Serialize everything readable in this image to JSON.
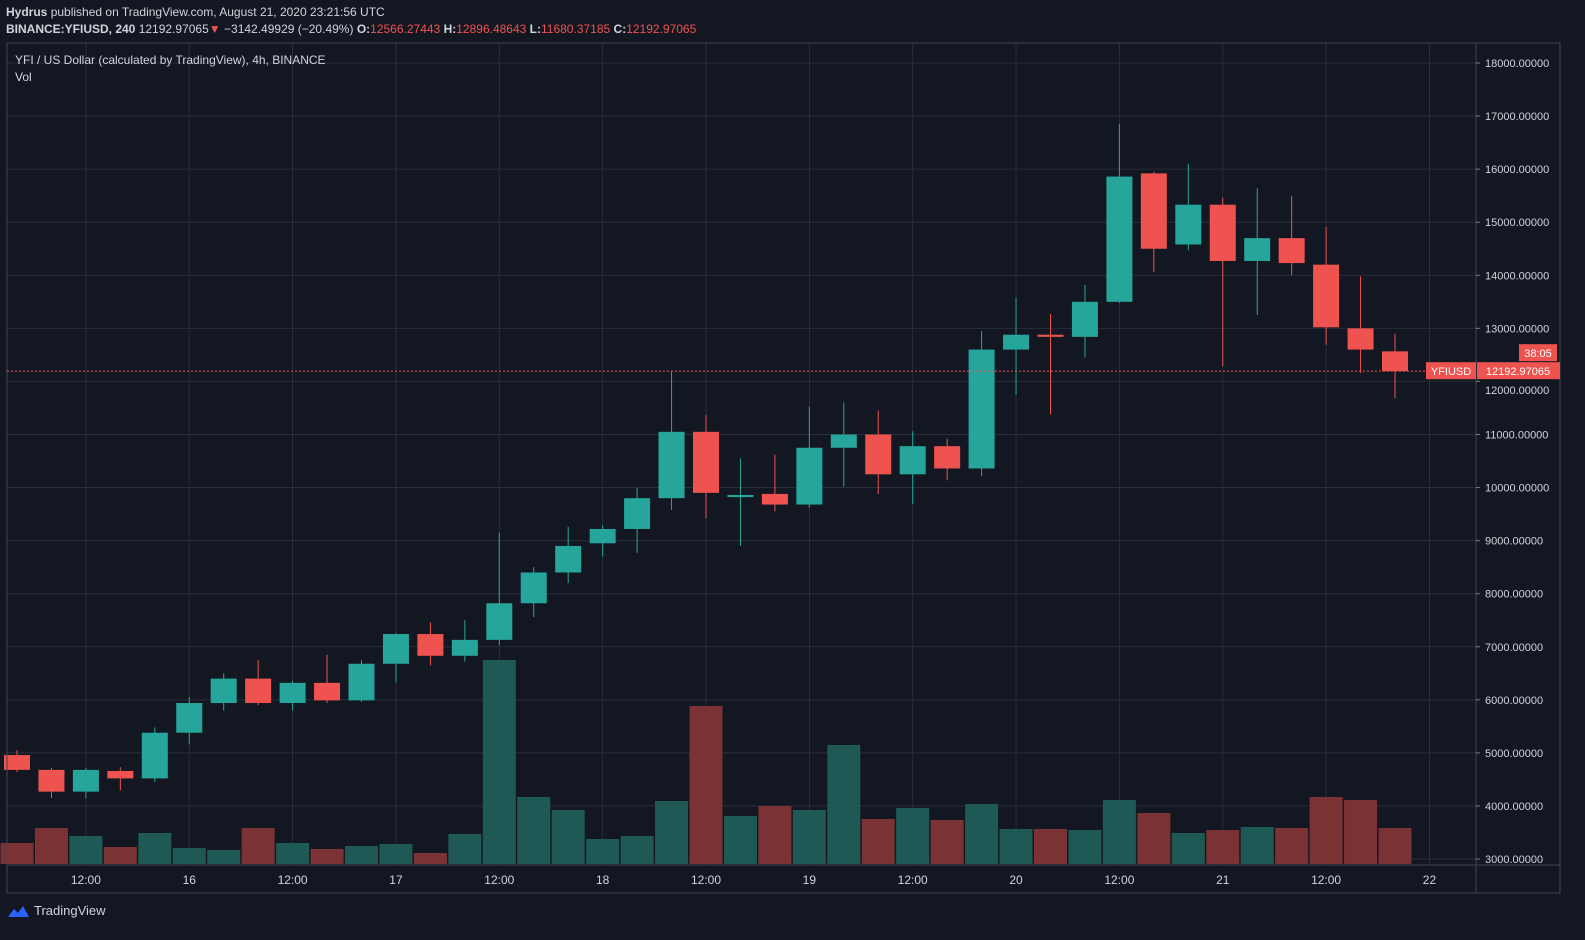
{
  "header": {
    "publisher": "Hydrus",
    "published_text": "published on TradingView.com, August 21, 2020 23:21:56 UTC",
    "symbol": "BINANCE:YFIUSD, 240",
    "last": "12192.97065",
    "change": "−3142.49929 (−20.49%)",
    "o_label": "O:",
    "o": "12566.27443",
    "h_label": "H:",
    "h": "12896.48643",
    "l_label": "L:",
    "l": "11680.37185",
    "c_label": "C:",
    "c": "12192.97065"
  },
  "legend": {
    "title": "YFI / US Dollar (calculated by TradingView), 4h, BINANCE",
    "volume": "Vol"
  },
  "price_badge": {
    "symbol": "YFIUSD",
    "price": "12192.97065",
    "countdown": "38:05"
  },
  "footer": {
    "brand": "TradingView"
  },
  "colors": {
    "up": "#26a69a",
    "down": "#ef5350",
    "background": "#131722",
    "grid": "#2a2e39"
  },
  "chart_data": {
    "type": "candlestick",
    "title": "YFI / US Dollar (calculated by TradingView), 4h, BINANCE",
    "ylim": [
      3000,
      18000
    ],
    "y_ticks": [
      "18000.00000",
      "17000.00000",
      "16000.00000",
      "15000.00000",
      "14000.00000",
      "13000.00000",
      "12000.00000",
      "11000.00000",
      "10000.00000",
      "9000.00000",
      "8000.00000",
      "7000.00000",
      "6000.00000",
      "5000.00000",
      "4000.00000",
      "3000.00000"
    ],
    "x_ticks": [
      "12:00",
      "16",
      "12:00",
      "17",
      "12:00",
      "18",
      "12:00",
      "19",
      "12:00",
      "20",
      "12:00",
      "21",
      "12:00",
      "22"
    ],
    "grid": true,
    "candles": [
      [
        4960,
        5050,
        4640,
        4680
      ],
      [
        4680,
        4720,
        4150,
        4270
      ],
      [
        4270,
        4720,
        4150,
        4680
      ],
      [
        4660,
        4730,
        4300,
        4520
      ],
      [
        4520,
        5480,
        4450,
        5380
      ],
      [
        5380,
        6050,
        5160,
        5940
      ],
      [
        5940,
        6500,
        5800,
        6400
      ],
      [
        6400,
        6750,
        5900,
        5940
      ],
      [
        5940,
        6360,
        5800,
        6320
      ],
      [
        6320,
        6850,
        5940,
        5990
      ],
      [
        5990,
        6750,
        5960,
        6680
      ],
      [
        6680,
        7260,
        6330,
        7240
      ],
      [
        7240,
        7460,
        6650,
        6830
      ],
      [
        6830,
        7500,
        6720,
        7130
      ],
      [
        7130,
        9150,
        7030,
        7820
      ],
      [
        7820,
        8500,
        7560,
        8400
      ],
      [
        8400,
        9260,
        8200,
        8900
      ],
      [
        8950,
        9290,
        8700,
        9220
      ],
      [
        9220,
        9990,
        8770,
        9800
      ],
      [
        9800,
        12200,
        9580,
        11050
      ],
      [
        11050,
        11370,
        9420,
        9900
      ],
      [
        9820,
        10550,
        8900,
        9860
      ],
      [
        9880,
        10620,
        9550,
        9680
      ],
      [
        9680,
        11520,
        9620,
        10750
      ],
      [
        10750,
        11600,
        10020,
        11000
      ],
      [
        11000,
        11450,
        9880,
        10250
      ],
      [
        10250,
        11060,
        9690,
        10780
      ],
      [
        10780,
        10920,
        10140,
        10360
      ],
      [
        10360,
        12950,
        10220,
        12600
      ],
      [
        12600,
        13580,
        11750,
        12880
      ],
      [
        12880,
        13270,
        11380,
        12840
      ],
      [
        12840,
        13820,
        12450,
        13500
      ],
      [
        13500,
        16850,
        13480,
        15860
      ],
      [
        15920,
        15950,
        14060,
        14500
      ],
      [
        14580,
        16100,
        14470,
        15330
      ],
      [
        15330,
        15460,
        12290,
        14270
      ],
      [
        14270,
        15640,
        13250,
        14700
      ],
      [
        14700,
        15500,
        14000,
        14230
      ],
      [
        14200,
        14910,
        12690,
        13020
      ],
      [
        13000,
        13980,
        12160,
        12600
      ],
      [
        12566.27,
        12896.49,
        11680.37,
        12192.97
      ]
    ],
    "volume_relative": [
      21,
      36,
      28,
      17,
      31,
      16,
      14,
      36,
      21,
      15,
      18,
      20,
      11,
      30,
      204,
      67,
      54,
      25,
      28,
      63,
      158,
      48,
      58,
      54,
      119,
      45,
      56,
      44,
      60,
      35,
      35,
      34,
      64,
      51,
      31,
      34,
      37,
      36,
      67,
      64,
      36
    ],
    "last_price": 12192.97065
  }
}
